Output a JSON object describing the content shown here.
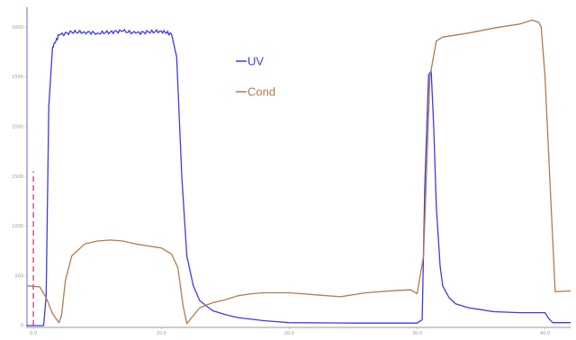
{
  "chart_data": {
    "type": "line",
    "title": "",
    "xlabel": "",
    "ylabel": "",
    "xlim": [
      -0.5,
      42
    ],
    "ylim": [
      0,
      3200
    ],
    "x_ticks": [
      {
        "value": 0,
        "label": "0.0"
      },
      {
        "value": 10,
        "label": "10.0"
      },
      {
        "value": 20,
        "label": "20.0"
      },
      {
        "value": 30,
        "label": "30.0"
      },
      {
        "value": 40,
        "label": "40.0"
      }
    ],
    "y_ticks": [
      {
        "value": 0,
        "label": "0"
      },
      {
        "value": 500,
        "label": "500"
      },
      {
        "value": 1000,
        "label": "1000"
      },
      {
        "value": 1500,
        "label": "1500"
      },
      {
        "value": 2000,
        "label": "2000"
      },
      {
        "value": 2500,
        "label": "2500"
      },
      {
        "value": 3000,
        "label": "3000"
      }
    ],
    "grid": false,
    "legend_position": "top-center",
    "marker": {
      "x": 0,
      "y_from": 0,
      "y_to": 1550,
      "color": "#e0407a"
    },
    "series": [
      {
        "name": "UV",
        "color": "#3b3bef",
        "x": [
          -0.5,
          0.8,
          1.0,
          1.2,
          1.5,
          2.0,
          3.0,
          4.0,
          5.0,
          6.0,
          7.0,
          8.0,
          9.0,
          10.0,
          10.8,
          11.2,
          11.6,
          12.0,
          12.5,
          13.0,
          14.0,
          15.0,
          16.0,
          18.0,
          20.0,
          25.0,
          30.0,
          30.4,
          30.6,
          30.9,
          31.1,
          31.3,
          31.5,
          31.8,
          32.0,
          32.5,
          33.0,
          34.0,
          35.0,
          36.0,
          38.0,
          40.0,
          40.3,
          40.6,
          42.0
        ],
        "y": [
          0,
          0,
          300,
          2200,
          2800,
          2920,
          2950,
          2950,
          2940,
          2950,
          2960,
          2940,
          2950,
          2960,
          2930,
          2700,
          1500,
          700,
          400,
          250,
          150,
          110,
          80,
          50,
          30,
          25,
          25,
          60,
          1400,
          2520,
          2560,
          2000,
          1200,
          600,
          400,
          280,
          220,
          180,
          160,
          140,
          130,
          130,
          70,
          30,
          30
        ]
      },
      {
        "name": "Cond",
        "color": "#b07c50",
        "x": [
          -0.5,
          0.5,
          1.0,
          1.5,
          2.0,
          2.2,
          2.5,
          3.0,
          4.0,
          5.0,
          6.0,
          7.0,
          8.0,
          9.0,
          10.0,
          10.8,
          11.3,
          11.7,
          12.0,
          12.5,
          13.0,
          14.0,
          15.0,
          16.0,
          17.0,
          18.0,
          20.0,
          22.0,
          24.0,
          26.0,
          28.0,
          29.5,
          30.0,
          30.5,
          31.0,
          31.5,
          32.0,
          34.0,
          36.0,
          38.0,
          39.0,
          39.5,
          39.7,
          40.0,
          40.4,
          40.8,
          42.0
        ],
        "y": [
          400,
          390,
          280,
          120,
          30,
          100,
          450,
          700,
          820,
          850,
          860,
          850,
          820,
          800,
          780,
          720,
          580,
          200,
          20,
          100,
          180,
          230,
          260,
          300,
          320,
          330,
          330,
          310,
          290,
          330,
          350,
          360,
          320,
          700,
          2500,
          2860,
          2900,
          2940,
          2990,
          3030,
          3070,
          3050,
          3000,
          2500,
          1400,
          340,
          350
        ]
      }
    ]
  }
}
